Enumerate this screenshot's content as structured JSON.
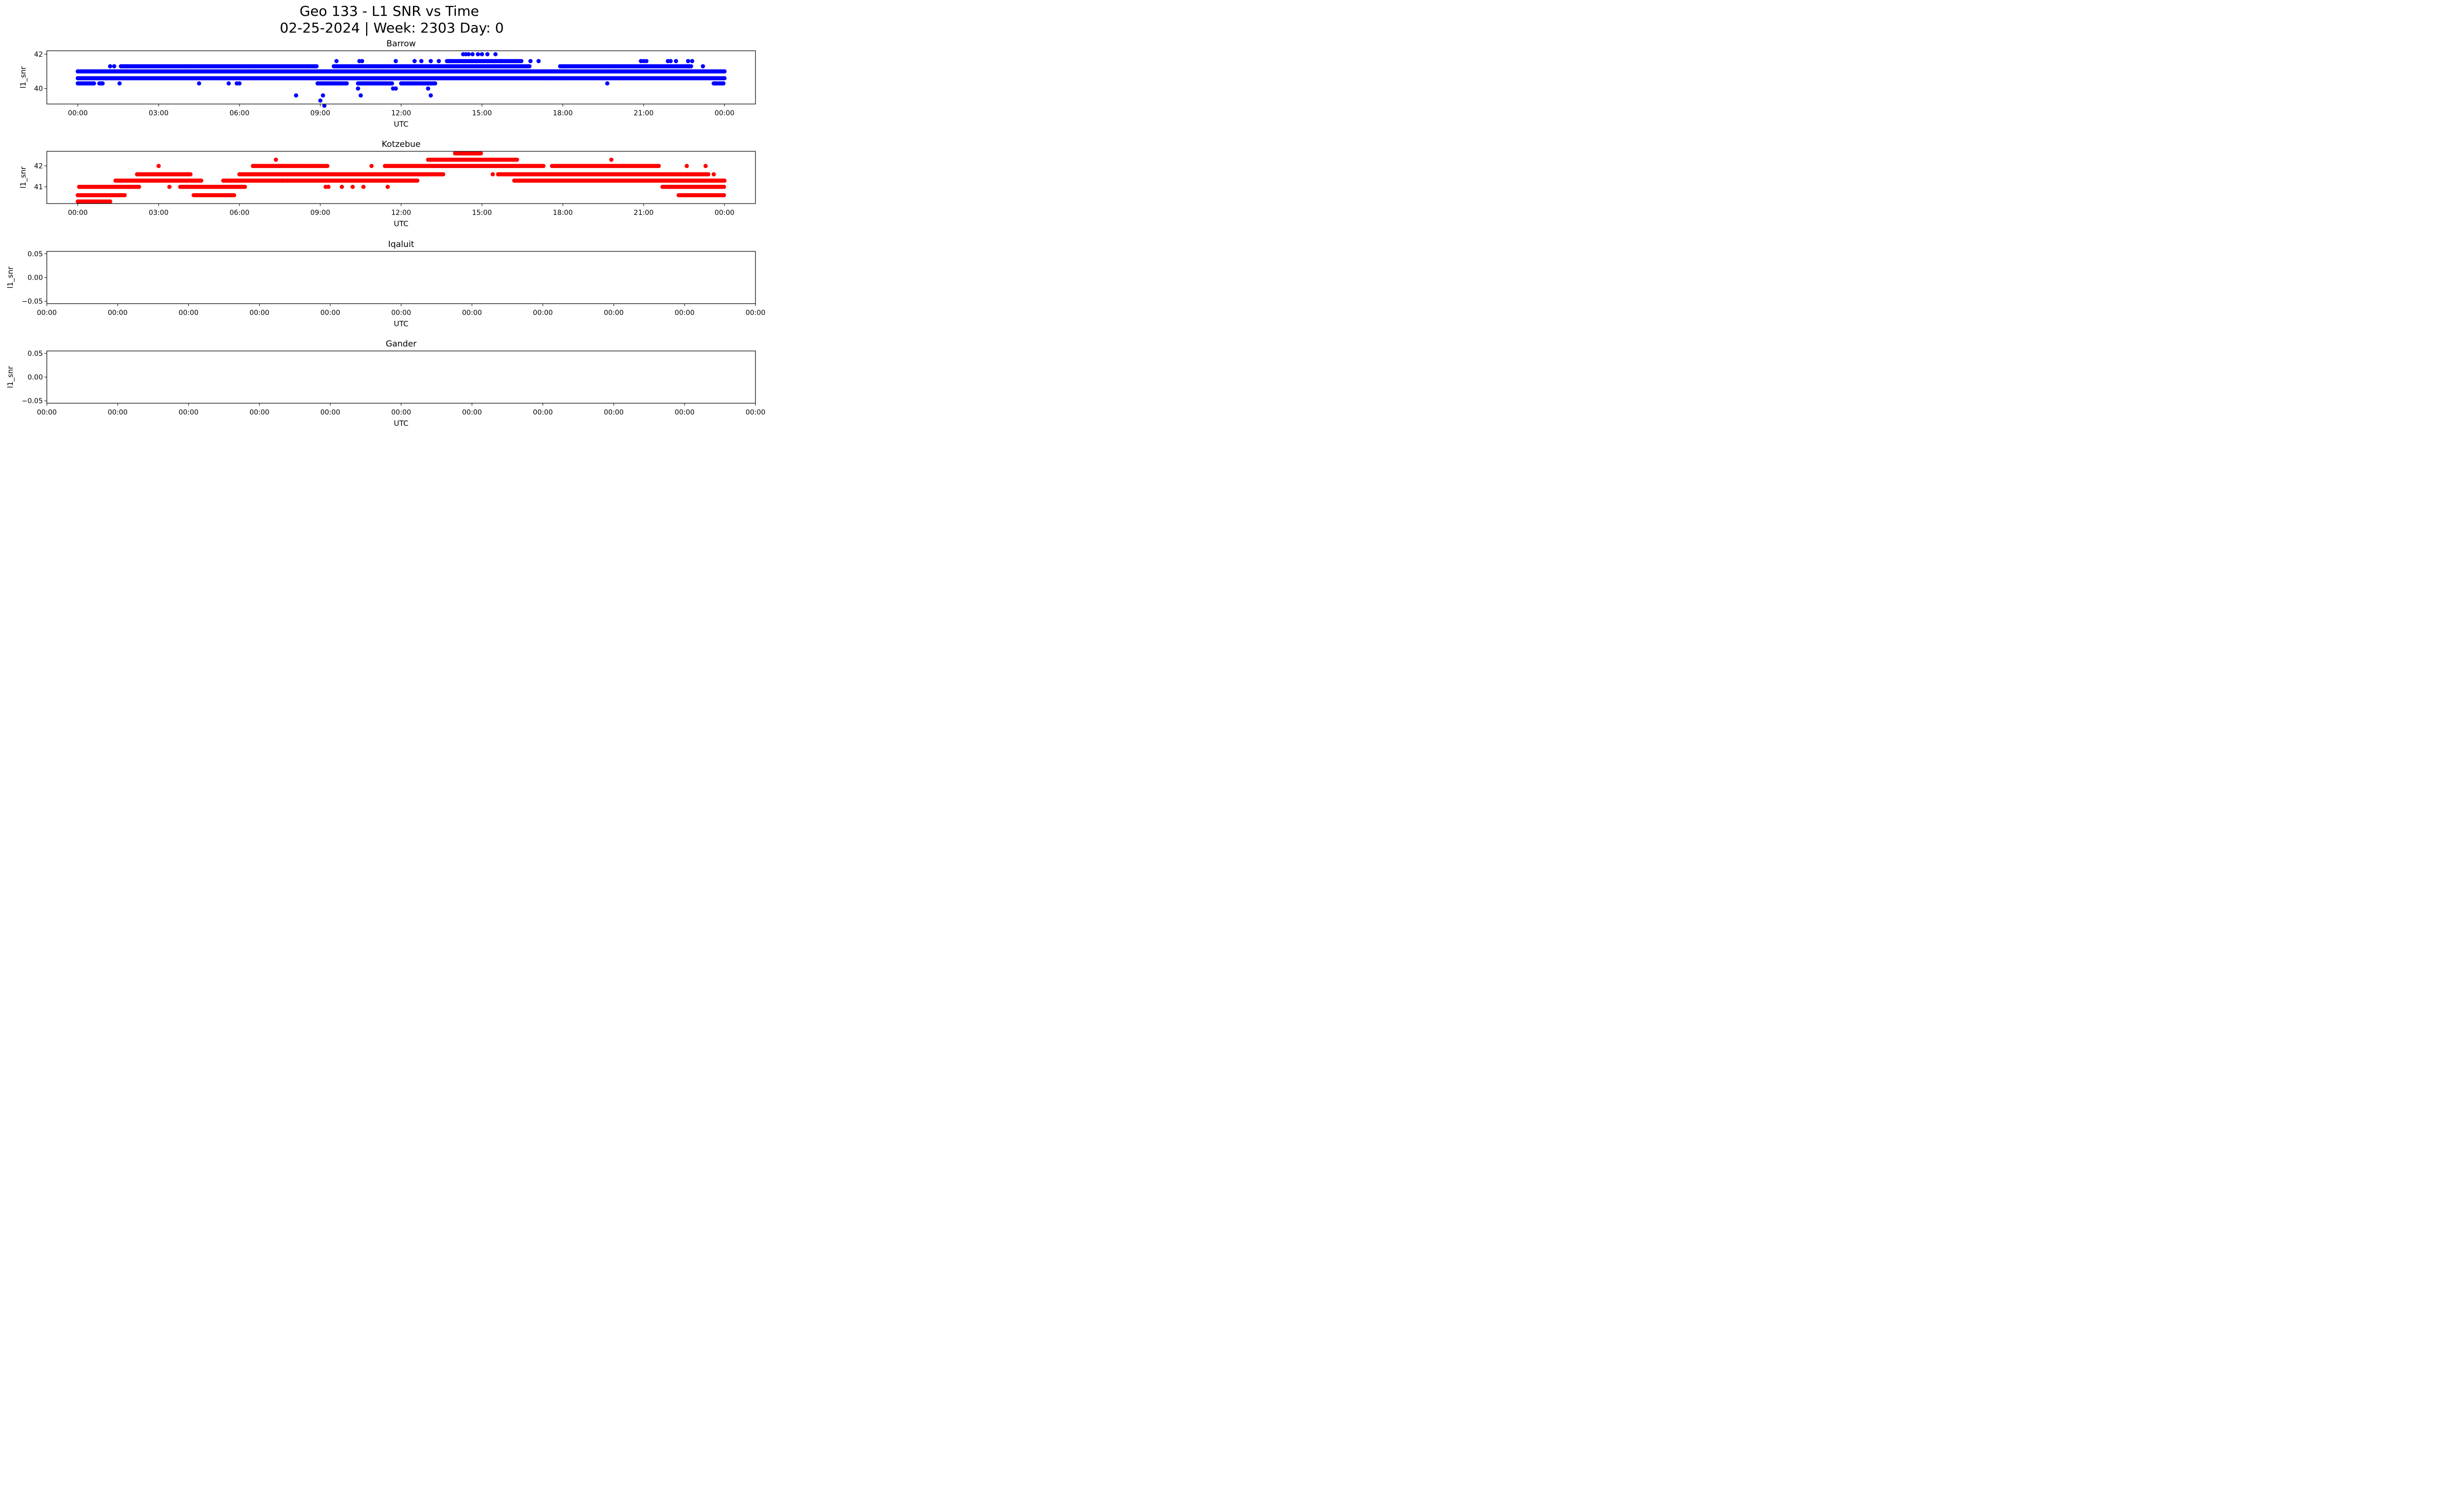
{
  "chart_data": {
    "type": "scatter",
    "title": "Geo 133 - L1 SNR vs Time",
    "subtitle": "02-25-2024 | Week: 2303 Day: 0",
    "panels": [
      {
        "title": "Barrow",
        "xlabel": "UTC",
        "ylabel": "l1_snr",
        "color": "#0000ff",
        "xlim_hours": [
          -1.15,
          25.15
        ],
        "ylim": [
          39.1,
          42.2
        ],
        "yticks": [
          40,
          42
        ],
        "ytick_labels": [
          "40",
          "42"
        ],
        "xtick_hours": [
          0,
          3,
          6,
          9,
          12,
          15,
          18,
          21,
          24
        ],
        "xtick_labels": [
          "00:00",
          "03:00",
          "06:00",
          "09:00",
          "12:00",
          "15:00",
          "18:00",
          "21:00",
          "00:00"
        ],
        "bands": [
          {
            "y": 40.3,
            "ranges": [
              [
                0,
                0.65
              ],
              [
                0.8,
                0.95
              ],
              [
                8.9,
                10.0
              ],
              [
                10.4,
                11.7
              ],
              [
                12.0,
                13.3
              ],
              [
                23.6,
                24.0
              ]
            ]
          },
          {
            "y": 40.6,
            "ranges": [
              [
                0,
                24.0
              ]
            ]
          },
          {
            "y": 41.0,
            "ranges": [
              [
                0,
                24.0
              ]
            ]
          },
          {
            "y": 41.3,
            "ranges": [
              [
                1.6,
                8.9
              ],
              [
                9.5,
                16.8
              ],
              [
                17.9,
                22.8
              ]
            ]
          },
          {
            "y": 41.6,
            "ranges": [
              [
                13.7,
                16.5
              ]
            ]
          }
        ],
        "points": [
          {
            "x": 1.2,
            "y": 41.3
          },
          {
            "x": 1.35,
            "y": 41.3
          },
          {
            "x": 1.55,
            "y": 40.3
          },
          {
            "x": 4.5,
            "y": 40.3
          },
          {
            "x": 5.6,
            "y": 40.3
          },
          {
            "x": 5.9,
            "y": 40.3
          },
          {
            "x": 6.0,
            "y": 40.3
          },
          {
            "x": 8.1,
            "y": 39.6
          },
          {
            "x": 9.0,
            "y": 39.3
          },
          {
            "x": 9.1,
            "y": 39.6
          },
          {
            "x": 9.15,
            "y": 39.0
          },
          {
            "x": 9.6,
            "y": 41.6
          },
          {
            "x": 10.4,
            "y": 40.0
          },
          {
            "x": 10.45,
            "y": 41.6
          },
          {
            "x": 10.5,
            "y": 39.6
          },
          {
            "x": 10.55,
            "y": 41.6
          },
          {
            "x": 11.7,
            "y": 40.0
          },
          {
            "x": 11.8,
            "y": 41.6
          },
          {
            "x": 11.8,
            "y": 40.0
          },
          {
            "x": 12.5,
            "y": 41.6
          },
          {
            "x": 12.75,
            "y": 41.6
          },
          {
            "x": 13.0,
            "y": 40.0
          },
          {
            "x": 13.1,
            "y": 39.6
          },
          {
            "x": 13.1,
            "y": 41.6
          },
          {
            "x": 13.4,
            "y": 41.6
          },
          {
            "x": 13.8,
            "y": 41.6
          },
          {
            "x": 14.3,
            "y": 42.0
          },
          {
            "x": 14.4,
            "y": 42.0
          },
          {
            "x": 14.5,
            "y": 42.0
          },
          {
            "x": 14.65,
            "y": 42.0
          },
          {
            "x": 14.85,
            "y": 42.0
          },
          {
            "x": 15.0,
            "y": 42.0
          },
          {
            "x": 15.2,
            "y": 42.0
          },
          {
            "x": 15.5,
            "y": 42.0
          },
          {
            "x": 16.8,
            "y": 41.6
          },
          {
            "x": 17.1,
            "y": 41.6
          },
          {
            "x": 17.5,
            "y": 40.6
          },
          {
            "x": 19.65,
            "y": 40.3
          },
          {
            "x": 20.9,
            "y": 41.6
          },
          {
            "x": 21.0,
            "y": 41.6
          },
          {
            "x": 21.1,
            "y": 41.6
          },
          {
            "x": 21.9,
            "y": 41.6
          },
          {
            "x": 22.0,
            "y": 41.6
          },
          {
            "x": 22.2,
            "y": 41.6
          },
          {
            "x": 22.65,
            "y": 41.6
          },
          {
            "x": 22.8,
            "y": 41.6
          },
          {
            "x": 23.2,
            "y": 41.3
          }
        ]
      },
      {
        "title": "Kotzebue",
        "xlabel": "UTC",
        "ylabel": "l1_snr",
        "color": "#ff0000",
        "xlim_hours": [
          -1.15,
          25.15
        ],
        "ylim": [
          40.2,
          42.7
        ],
        "yticks": [
          41,
          42
        ],
        "ytick_labels": [
          "41",
          "42"
        ],
        "xtick_hours": [
          0,
          3,
          6,
          9,
          12,
          15,
          18,
          21,
          24
        ],
        "xtick_labels": [
          "00:00",
          "03:00",
          "06:00",
          "09:00",
          "12:00",
          "15:00",
          "18:00",
          "21:00",
          "00:00"
        ],
        "bands": [
          {
            "y": 40.3,
            "ranges": [
              [
                0,
                1.2
              ]
            ]
          },
          {
            "y": 40.6,
            "ranges": [
              [
                0,
                1.75
              ],
              [
                4.3,
                5.8
              ],
              [
                22.3,
                24.0
              ]
            ]
          },
          {
            "y": 41.0,
            "ranges": [
              [
                0.05,
                2.3
              ],
              [
                3.8,
                6.2
              ],
              [
                21.7,
                24.0
              ]
            ]
          },
          {
            "y": 41.3,
            "ranges": [
              [
                1.4,
                4.6
              ],
              [
                5.4,
                12.6
              ],
              [
                16.2,
                24.0
              ]
            ]
          },
          {
            "y": 41.6,
            "ranges": [
              [
                2.2,
                4.2
              ],
              [
                6.0,
                13.6
              ],
              [
                15.6,
                23.4
              ]
            ]
          },
          {
            "y": 42.0,
            "ranges": [
              [
                6.5,
                9.3
              ],
              [
                11.4,
                17.3
              ],
              [
                17.6,
                21.6
              ]
            ]
          },
          {
            "y": 42.3,
            "ranges": [
              [
                13.0,
                16.3
              ]
            ]
          },
          {
            "y": 42.6,
            "ranges": [
              [
                14.0,
                15.0
              ]
            ]
          }
        ],
        "points": [
          {
            "x": 3.0,
            "y": 42.0
          },
          {
            "x": 3.4,
            "y": 41.0
          },
          {
            "x": 7.35,
            "y": 42.3
          },
          {
            "x": 7.6,
            "y": 41.3
          },
          {
            "x": 9.2,
            "y": 41.0
          },
          {
            "x": 9.3,
            "y": 41.0
          },
          {
            "x": 9.8,
            "y": 41.0
          },
          {
            "x": 10.2,
            "y": 41.0
          },
          {
            "x": 10.6,
            "y": 41.0
          },
          {
            "x": 10.9,
            "y": 42.0
          },
          {
            "x": 11.5,
            "y": 41.0
          },
          {
            "x": 15.4,
            "y": 41.6
          },
          {
            "x": 19.8,
            "y": 42.3
          },
          {
            "x": 22.6,
            "y": 42.0
          },
          {
            "x": 23.3,
            "y": 42.0
          },
          {
            "x": 23.6,
            "y": 41.6
          }
        ]
      },
      {
        "title": "Iqaluit",
        "xlabel": "UTC",
        "ylabel": "l1_snr",
        "color": "#008000",
        "ylim": [
          -0.055,
          0.055
        ],
        "yticks": [
          -0.05,
          0.0,
          0.05
        ],
        "ytick_labels": [
          "−0.05",
          "0.00",
          "0.05"
        ],
        "xtick_labels": [
          "00:00",
          "00:00",
          "00:00",
          "00:00",
          "00:00",
          "00:00",
          "00:00",
          "00:00",
          "00:00",
          "00:00",
          "00:00"
        ],
        "points": []
      },
      {
        "title": "Gander",
        "xlabel": "UTC",
        "ylabel": "l1_snr",
        "color": "#800080",
        "ylim": [
          -0.055,
          0.055
        ],
        "yticks": [
          -0.05,
          0.0,
          0.05
        ],
        "ytick_labels": [
          "−0.05",
          "0.00",
          "0.05"
        ],
        "xtick_labels": [
          "00:00",
          "00:00",
          "00:00",
          "00:00",
          "00:00",
          "00:00",
          "00:00",
          "00:00",
          "00:00",
          "00:00",
          "00:00"
        ],
        "points": []
      }
    ]
  }
}
